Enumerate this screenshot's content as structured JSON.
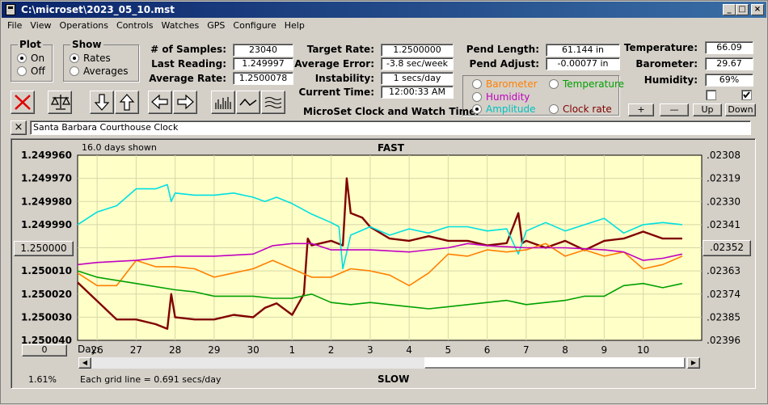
{
  "window": {
    "title": "C:\\microset\\2023_05_10.mst"
  },
  "menu": [
    "File",
    "View",
    "Operations",
    "Controls",
    "Watches",
    "GPS",
    "Configure",
    "Help"
  ],
  "plot_group": {
    "label": "Plot",
    "options": [
      "On",
      "Off"
    ],
    "selected": "On"
  },
  "show_group": {
    "label": "Show",
    "options": [
      "Rates",
      "Averages"
    ],
    "selected": "Rates"
  },
  "stats": {
    "samples_label": "# of Samples:",
    "samples": "23040",
    "last_label": "Last Reading:",
    "last": "1.249997",
    "avg_label": "Average Rate:",
    "avg": "1.2500078",
    "target_label": "Target Rate:",
    "target": "1.2500000",
    "err_label": "Average Error:",
    "err": "-3.8 sec/week",
    "instab_label": "Instability:",
    "instab": "1 secs/day",
    "time_label": "Current Time:",
    "time": "12:00:33 AM",
    "pendlen_label": "Pend Length:",
    "pendlen": "61.144 in",
    "pendadj_label": "Pend Adjust:",
    "pendadj": "-0.00077 in",
    "temp_label": "Temperature:",
    "temp": "66.09",
    "baro_label": "Barometer:",
    "baro": "29.67",
    "hum_label": "Humidity:",
    "hum": "69%"
  },
  "app_caption": "MicroSet Clock and Watch Timer",
  "sensors": {
    "options": [
      {
        "label": "Barometer",
        "color": "#ff8000",
        "selected": false
      },
      {
        "label": "Temperature",
        "color": "#00a000",
        "selected": false
      },
      {
        "label": "Humidity",
        "color": "#c000c0",
        "selected": false
      },
      {
        "label": "Amplitude",
        "color": "#00c0c0",
        "selected": true
      },
      {
        "label": "Clock rate",
        "color": "#800000",
        "selected": false
      }
    ]
  },
  "scale_buttons": [
    "+",
    "—",
    "Up",
    "Down"
  ],
  "clock_name": "Santa Barbara Courthouse Clock",
  "left_buttons": {
    "center": "1.250000",
    "zero": "0"
  },
  "right_button": ".02352",
  "footer": {
    "percent": "1.61%",
    "grid_note": "Each grid line = 0.691 secs/day"
  },
  "chart_data": {
    "type": "line",
    "title": "FAST",
    "bottom_label": "SLOW",
    "days_shown": "16.0 days shown",
    "x_axis_prefix": "Day:",
    "x_ticks": [
      "26",
      "27",
      "28",
      "29",
      "30",
      "1",
      "2",
      "3",
      "4",
      "5",
      "6",
      "7",
      "8",
      "9",
      "10"
    ],
    "xlim": [
      25.5,
      41.5
    ],
    "x_tick_positions": [
      26,
      27,
      28,
      29,
      30,
      31,
      32,
      33,
      34,
      35,
      36,
      37,
      38,
      39,
      40
    ],
    "y_left_ticks": [
      "1.249960",
      "1.249970",
      "1.249980",
      "1.249990",
      "1.250000",
      "1.250010",
      "1.250020",
      "1.250030",
      "1.250040"
    ],
    "y_left_lim": [
      1.24996,
      1.25004
    ],
    "y_right_ticks": [
      ".02308",
      ".02319",
      ".02330",
      ".02341",
      ".02352",
      ".02363",
      ".02374",
      ".02385",
      ".02396"
    ],
    "grid": true,
    "background": "#ffffc8",
    "series": [
      {
        "name": "Clock rate",
        "color": "#800000",
        "axis": "left",
        "x": [
          25.5,
          26,
          26.5,
          27,
          27.5,
          27.8,
          27.9,
          28,
          28.5,
          29,
          29.5,
          30,
          30.3,
          30.6,
          31,
          31.3,
          31.4,
          31.5,
          32,
          32.3,
          32.4,
          32.5,
          32.8,
          33,
          33.5,
          34,
          34.5,
          35,
          35.5,
          36,
          36.5,
          36.8,
          36.9,
          37,
          37.5,
          38,
          38.5,
          39,
          39.5,
          40,
          40.5,
          41
        ],
        "y": [
          1.250015,
          1.250023,
          1.250031,
          1.250031,
          1.250033,
          1.250035,
          1.25002,
          1.25003,
          1.250031,
          1.250031,
          1.250029,
          1.25003,
          1.250026,
          1.250024,
          1.250029,
          1.25002,
          1.249996,
          1.249999,
          1.249997,
          1.249999,
          1.24997,
          1.249985,
          1.249987,
          1.249991,
          1.249996,
          1.249997,
          1.249995,
          1.249997,
          1.249997,
          1.249999,
          1.249998,
          1.249985,
          1.249998,
          1.249997,
          1.25,
          1.249997,
          1.250001,
          1.249997,
          1.249996,
          1.249993,
          1.249996,
          1.249996
        ]
      },
      {
        "name": "Amplitude",
        "color": "#00e0e0",
        "axis": "right",
        "x": [
          25.5,
          26,
          26.5,
          27,
          27.5,
          27.8,
          27.9,
          28,
          28.5,
          29,
          29.5,
          30,
          30.3,
          30.6,
          31,
          31.5,
          32,
          32.2,
          32.3,
          32.5,
          33,
          33.5,
          34,
          34.5,
          35,
          35.5,
          36,
          36.5,
          36.8,
          37,
          37.5,
          38,
          38.5,
          39,
          39.5,
          40,
          40.5,
          41
        ],
        "y": [
          0.02341,
          0.02335,
          0.02332,
          0.02324,
          0.02324,
          0.02322,
          0.0233,
          0.02326,
          0.02327,
          0.02327,
          0.02326,
          0.02328,
          0.0233,
          0.02328,
          0.02331,
          0.02336,
          0.0234,
          0.02342,
          0.02362,
          0.02346,
          0.02342,
          0.02346,
          0.02343,
          0.02345,
          0.02342,
          0.02342,
          0.02344,
          0.02343,
          0.02355,
          0.02344,
          0.0234,
          0.02344,
          0.02341,
          0.02338,
          0.02345,
          0.02341,
          0.0234,
          0.02341
        ]
      },
      {
        "name": "Barometer",
        "color": "#ff8000",
        "axis": "right",
        "x": [
          25.5,
          26,
          26.5,
          27,
          27.5,
          28,
          28.5,
          29,
          29.5,
          30,
          30.5,
          31,
          31.5,
          32,
          32.5,
          33,
          33.5,
          34,
          34.5,
          35,
          35.5,
          36,
          36.5,
          37,
          37.5,
          38,
          38.5,
          39,
          39.5,
          40,
          40.5,
          41
        ],
        "y": [
          0.02364,
          0.0237,
          0.0237,
          0.02358,
          0.02361,
          0.02361,
          0.02362,
          0.02366,
          0.02364,
          0.02362,
          0.02358,
          0.02362,
          0.02366,
          0.02366,
          0.02362,
          0.02363,
          0.02365,
          0.0237,
          0.02364,
          0.02355,
          0.02356,
          0.02353,
          0.02354,
          0.02353,
          0.0235,
          0.02356,
          0.02353,
          0.02356,
          0.02354,
          0.02362,
          0.0236,
          0.02356
        ]
      },
      {
        "name": "Humidity",
        "color": "#c000c0",
        "axis": "right",
        "x": [
          25.5,
          26,
          27,
          28,
          29,
          30,
          30.5,
          31,
          31.5,
          32,
          33,
          34,
          35,
          35.5,
          36,
          37,
          38,
          39,
          39.5,
          40,
          40.5,
          41
        ],
        "y": [
          0.0236,
          0.02359,
          0.02358,
          0.02356,
          0.02356,
          0.02355,
          0.02351,
          0.0235,
          0.0235,
          0.02353,
          0.02353,
          0.02354,
          0.02352,
          0.0235,
          0.02351,
          0.02352,
          0.02352,
          0.02353,
          0.02354,
          0.02358,
          0.02357,
          0.02355
        ]
      },
      {
        "name": "Temperature",
        "color": "#00a000",
        "axis": "right",
        "x": [
          25.5,
          26,
          27,
          28,
          28.5,
          29,
          30,
          30.5,
          31,
          31.5,
          32,
          32.5,
          33,
          33.5,
          34,
          34.5,
          35,
          35.5,
          36,
          36.5,
          37,
          37.5,
          38,
          38.5,
          39,
          39.5,
          40,
          40.5,
          41
        ],
        "y": [
          0.02363,
          0.02366,
          0.02369,
          0.02372,
          0.02373,
          0.02375,
          0.02375,
          0.02376,
          0.02376,
          0.02374,
          0.02378,
          0.02379,
          0.02378,
          0.02379,
          0.0238,
          0.02381,
          0.0238,
          0.02379,
          0.02378,
          0.02377,
          0.02379,
          0.02378,
          0.02377,
          0.02375,
          0.02375,
          0.0237,
          0.02369,
          0.02371,
          0.02369
        ]
      }
    ]
  }
}
